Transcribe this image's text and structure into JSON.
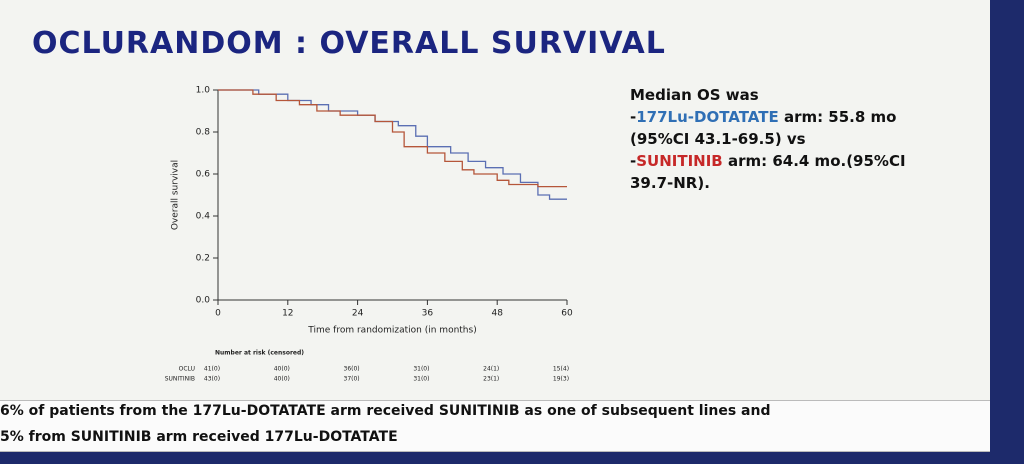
{
  "slide": {
    "title": "OCLURANDOM : OVERALL SURVIVAL",
    "median_text": {
      "line1": "Median OS was",
      "dash": "-",
      "arm1": "177Lu-DOTATATE",
      "arm1_text": " arm: 55.8 mo (95%CI 43.1-69.5) vs",
      "arm2": "SUNITINIB",
      "arm2_text": " arm: 64.4 mo.(95%CI 39.7-NR)."
    },
    "footer": [
      "6% of patients from the 177Lu-DOTATATE arm received SUNITINIB as one of subsequent lines and",
      "5% from SUNITINIB arm received 177Lu-DOTATATE"
    ]
  },
  "chart_data": {
    "type": "line",
    "step": true,
    "xlabel": "Time from randomization (in months)",
    "ylabel": "Overall survival",
    "xlim": [
      0,
      60
    ],
    "xticks": [
      0,
      12,
      24,
      36,
      48,
      60
    ],
    "ylim": [
      0,
      1
    ],
    "yticks": [
      {
        "value": 0,
        "label": "0.0"
      },
      0.2,
      0.4,
      0.6,
      0.8,
      {
        "value": 1,
        "label": "1.0"
      }
    ],
    "risk_title": "Number at risk (censored)",
    "series": [
      {
        "name": "OCLU",
        "color": "#5b6fb3",
        "x": [
          0,
          7,
          12,
          16,
          19,
          24,
          27,
          31,
          34,
          36,
          40,
          43,
          46,
          49,
          52,
          55,
          57,
          60
        ],
        "values": [
          1,
          0.98,
          0.95,
          0.93,
          0.9,
          0.88,
          0.85,
          0.83,
          0.78,
          0.73,
          0.7,
          0.66,
          0.63,
          0.6,
          0.56,
          0.5,
          0.48,
          0.48
        ],
        "at_risk": [
          "41(0)",
          "40(0)",
          "36(0)",
          "31(0)",
          "24(1)",
          "15(4)"
        ]
      },
      {
        "name": "SUNITINIB",
        "color": "#b5563a",
        "x": [
          0,
          6,
          10,
          14,
          17,
          21,
          27,
          30,
          32,
          36,
          39,
          42,
          44,
          48,
          50,
          55,
          60
        ],
        "values": [
          1,
          0.98,
          0.95,
          0.93,
          0.9,
          0.88,
          0.85,
          0.8,
          0.73,
          0.7,
          0.66,
          0.62,
          0.6,
          0.57,
          0.55,
          0.54,
          0.54
        ],
        "at_risk": [
          "43(0)",
          "40(0)",
          "37(0)",
          "31(0)",
          "23(1)",
          "19(3)"
        ]
      }
    ]
  }
}
